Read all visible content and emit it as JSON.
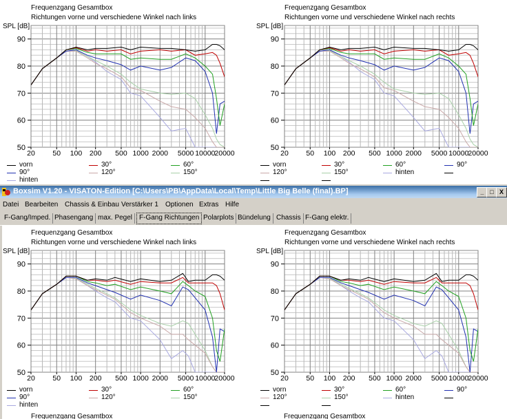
{
  "window": {
    "title": "Boxsim V1.20 - VISATON-Edition [C:\\Users\\PB\\AppData\\Local\\Temp\\Little Big Belle (final).BP]",
    "minimize": "_",
    "maximize": "□",
    "close": "X"
  },
  "menu": [
    "Datei",
    "Bearbeiten",
    "Chassis & Einbau",
    "Verstärker 1",
    "Optionen",
    "Extras",
    "Hilfe"
  ],
  "tabs": [
    {
      "label": "F-Gang/Imped.",
      "active": false
    },
    {
      "label": "Phasengang",
      "active": false
    },
    {
      "label": "max. Pegel",
      "active": false
    },
    {
      "label": "F-Gang Richtungen",
      "active": true
    },
    {
      "label": "Polarplots",
      "active": false
    },
    {
      "label": "Bündelung",
      "active": false
    },
    {
      "label": "Chassis",
      "active": false
    },
    {
      "label": "F-Gang elektr.",
      "active": false
    }
  ],
  "colors": {
    "vorn": "#000000",
    "30": "#c00000",
    "60": "#20a020",
    "90": "#2030b0",
    "120": "#c8a8a8",
    "150": "#a8d0a8",
    "hinten": "#a8a8e0"
  },
  "lower_partial_titles": [
    "Frequenzgang Gesamtbox",
    "Frequenzgang Gesamtbox"
  ],
  "chart_data": [
    {
      "type": "line",
      "title": "Frequenzgang Gesamtbox",
      "subtitle": "Richtungen vorne und verschiedene Winkel nach links",
      "ylabel": "SPL [dB]",
      "xscale": "log",
      "xlim": [
        20,
        20000
      ],
      "ylim": [
        50,
        95
      ],
      "xticks": [
        "20",
        "50",
        "100",
        "200",
        "500",
        "1000",
        "2000",
        "5000",
        "10000",
        "20000"
      ],
      "yticks": [
        "50",
        "60",
        "70",
        "80",
        "90"
      ],
      "grid": true,
      "legend": [
        "vorn",
        "30°",
        "60°",
        "90°",
        "120°",
        "150°",
        "hinten"
      ],
      "x": [
        20,
        30,
        50,
        70,
        100,
        150,
        200,
        300,
        500,
        700,
        1000,
        2000,
        3000,
        5000,
        7000,
        10000,
        13000,
        15000,
        17000,
        20000
      ],
      "series": [
        {
          "name": "vorn",
          "key": "vorn",
          "values": [
            73,
            79,
            83,
            86,
            87,
            86,
            86.5,
            86.5,
            87,
            86,
            87,
            86.5,
            86.5,
            86,
            85.5,
            86,
            88,
            88,
            87.5,
            86
          ]
        },
        {
          "name": "30°",
          "key": "30",
          "values": [
            73,
            79,
            83,
            86,
            86.8,
            85.5,
            86,
            85.5,
            86,
            84.5,
            85.5,
            86,
            85.5,
            86,
            84,
            84.5,
            85,
            84,
            81,
            76
          ]
        },
        {
          "name": "60°",
          "key": "60",
          "values": [
            73,
            79,
            83,
            86,
            86.5,
            85,
            84.5,
            84.5,
            84.5,
            82.5,
            83,
            82.5,
            82.5,
            84.5,
            83,
            80,
            77,
            68,
            58,
            66
          ]
        },
        {
          "name": "90°",
          "key": "90",
          "values": [
            73,
            79,
            83,
            85.5,
            86,
            84,
            83,
            82,
            80.5,
            78.5,
            80,
            78.5,
            79.5,
            83,
            82,
            78,
            70,
            55,
            66,
            67
          ]
        },
        {
          "name": "120°",
          "key": "120",
          "values": [
            73,
            79,
            83,
            85.5,
            85.5,
            83,
            81,
            79,
            76,
            72,
            71,
            67,
            65,
            64,
            61,
            57,
            52,
            50,
            50,
            50
          ]
        },
        {
          "name": "150°",
          "key": "150",
          "values": [
            73,
            79,
            83,
            85.5,
            85.8,
            83.5,
            82,
            80,
            77,
            74,
            71.5,
            70,
            69.5,
            70,
            68,
            62,
            57,
            53,
            51,
            50
          ]
        },
        {
          "name": "hinten",
          "key": "hinten",
          "values": [
            73,
            79,
            83,
            85.5,
            85.8,
            83.5,
            81.5,
            78,
            75,
            70,
            69,
            61,
            56,
            57,
            50,
            50,
            50,
            50,
            50,
            50
          ]
        }
      ]
    },
    {
      "type": "line",
      "title": "Frequenzgang Gesamtbox",
      "subtitle": "Richtungen vorne und verschiedene Winkel nach rechts",
      "ylabel": "SPL [dB]",
      "xscale": "log",
      "xlim": [
        20,
        20000
      ],
      "ylim": [
        50,
        95
      ],
      "xticks": [
        "20",
        "50",
        "100",
        "200",
        "500",
        "1000",
        "2000",
        "5000",
        "10000",
        "20000"
      ],
      "yticks": [
        "50",
        "60",
        "70",
        "80",
        "90"
      ],
      "grid": true,
      "legend": [
        "vorn",
        "30°",
        "60°",
        "90°",
        "120°",
        "150°",
        "hinten",
        "",
        "",
        ""
      ],
      "x": [
        20,
        30,
        50,
        70,
        100,
        150,
        200,
        300,
        500,
        700,
        1000,
        2000,
        3000,
        5000,
        7000,
        10000,
        13000,
        15000,
        17000,
        20000
      ],
      "series": [
        {
          "name": "vorn",
          "key": "vorn",
          "values": [
            73,
            79,
            83,
            86,
            87,
            86,
            86.5,
            86.5,
            87,
            86,
            87,
            86.5,
            86.5,
            86,
            85.5,
            86,
            88,
            88,
            87.5,
            86
          ]
        },
        {
          "name": "30°",
          "key": "30",
          "values": [
            73,
            79,
            83,
            86,
            86.8,
            85.5,
            86,
            85.5,
            86,
            84.5,
            85.5,
            86,
            85.5,
            86,
            84,
            84.5,
            85,
            84,
            81,
            76
          ]
        },
        {
          "name": "60°",
          "key": "60",
          "values": [
            73,
            79,
            83,
            86,
            86.5,
            85,
            84.5,
            84.5,
            84.5,
            82.5,
            83,
            82.5,
            82.5,
            84.5,
            83,
            80,
            77,
            68,
            58,
            66
          ]
        },
        {
          "name": "90°",
          "key": "90",
          "values": [
            73,
            79,
            83,
            85.5,
            86,
            84,
            83,
            82,
            80.5,
            78.5,
            80,
            78.5,
            79.5,
            83,
            82,
            78,
            70,
            55,
            66,
            67
          ]
        },
        {
          "name": "120°",
          "key": "120",
          "values": [
            73,
            79,
            83,
            85.5,
            85.5,
            83,
            81,
            79,
            76,
            72,
            71,
            67,
            65,
            64,
            61,
            57,
            52,
            50,
            50,
            50
          ]
        },
        {
          "name": "150°",
          "key": "150",
          "values": [
            73,
            79,
            83,
            85.5,
            85.8,
            83.5,
            82,
            80,
            77,
            74,
            71.5,
            70,
            69.5,
            70,
            68,
            62,
            57,
            53,
            51,
            50
          ]
        },
        {
          "name": "hinten",
          "key": "hinten",
          "values": [
            73,
            79,
            83,
            85.5,
            85.8,
            83.5,
            81.5,
            78,
            75,
            70,
            69,
            61,
            56,
            57,
            50,
            50,
            50,
            50,
            50,
            50
          ]
        }
      ]
    },
    {
      "type": "line",
      "title": "Frequenzgang Gesamtbox",
      "subtitle": "Richtungen vorne und verschiedene Winkel nach links",
      "ylabel": "SPL [dB]",
      "xscale": "log",
      "xlim": [
        20,
        20000
      ],
      "ylim": [
        50,
        95
      ],
      "xticks": [
        "20",
        "50",
        "100",
        "200",
        "500",
        "1000",
        "2000",
        "5000",
        "10000",
        "20000"
      ],
      "yticks": [
        "50",
        "60",
        "70",
        "80",
        "90"
      ],
      "grid": true,
      "legend": [
        "vorn",
        "30°",
        "60°",
        "90°",
        "120°",
        "150°",
        "hinten"
      ],
      "x": [
        20,
        30,
        50,
        70,
        100,
        150,
        200,
        300,
        400,
        700,
        1000,
        2000,
        3000,
        4500,
        5500,
        7000,
        10000,
        13000,
        15000,
        17000,
        20000
      ],
      "series": [
        {
          "name": "vorn",
          "key": "vorn",
          "values": [
            73,
            79,
            82.5,
            85.5,
            85.5,
            84,
            84.5,
            84,
            85,
            83.5,
            84.5,
            83.5,
            84,
            86.5,
            83.5,
            84,
            84,
            86,
            86,
            85.5,
            84
          ]
        },
        {
          "name": "30°",
          "key": "30",
          "values": [
            73,
            79,
            82.5,
            85.5,
            85.5,
            84,
            84,
            83.5,
            84,
            82.5,
            83.5,
            83,
            83,
            85,
            83,
            83,
            83,
            83,
            82,
            79,
            73
          ]
        },
        {
          "name": "60°",
          "key": "60",
          "values": [
            73,
            79,
            82.5,
            85.5,
            85.5,
            83.5,
            83,
            82,
            82.5,
            80.5,
            81.5,
            80,
            79,
            83.5,
            82,
            80,
            78,
            70,
            58,
            54,
            66
          ]
        },
        {
          "name": "90°",
          "key": "90",
          "values": [
            73,
            79,
            82.5,
            85,
            85,
            83,
            82,
            80.5,
            79.5,
            77,
            78.5,
            76.5,
            74.5,
            81.5,
            80.5,
            77.5,
            73,
            63,
            50,
            66,
            65
          ]
        },
        {
          "name": "120°",
          "key": "120",
          "values": [
            73,
            79,
            82.5,
            85,
            84.5,
            82,
            80.5,
            78.5,
            77,
            72,
            70,
            67,
            64,
            64,
            62,
            60,
            57,
            52,
            50,
            50,
            50
          ]
        },
        {
          "name": "150°",
          "key": "150",
          "values": [
            73,
            79,
            82.5,
            85,
            84.8,
            82.5,
            81,
            79,
            77.5,
            73,
            71,
            68,
            67,
            69,
            68,
            64,
            58,
            52,
            50,
            50,
            50
          ]
        },
        {
          "name": "hinten",
          "key": "hinten",
          "values": [
            73,
            79,
            82.5,
            85,
            84.8,
            82,
            80,
            77.5,
            76,
            70,
            69,
            62,
            55,
            58,
            56,
            50,
            50,
            50,
            50,
            50,
            50
          ]
        }
      ]
    },
    {
      "type": "line",
      "title": "Frequenzgang Gesamtbox",
      "subtitle": "Richtungen vorne und verschiedene Winkel nach rechts",
      "ylabel": "SPL [dB]",
      "xscale": "log",
      "xlim": [
        20,
        20000
      ],
      "ylim": [
        50,
        95
      ],
      "xticks": [
        "20",
        "50",
        "100",
        "200",
        "500",
        "1000",
        "2000",
        "5000",
        "10000",
        "20000"
      ],
      "yticks": [
        "50",
        "60",
        "70",
        "80",
        "90"
      ],
      "grid": true,
      "legend": [
        "vorn",
        "30°",
        "60°",
        "90°",
        "120°",
        "150°",
        "hinten",
        "",
        "",
        ""
      ],
      "x": [
        20,
        30,
        50,
        70,
        100,
        150,
        200,
        300,
        400,
        700,
        1000,
        2000,
        3000,
        4500,
        5500,
        7000,
        10000,
        13000,
        15000,
        17000,
        20000
      ],
      "series": [
        {
          "name": "vorn",
          "key": "vorn",
          "values": [
            73,
            79,
            82.5,
            85.5,
            85.5,
            84,
            84.5,
            84,
            85,
            83.5,
            84.5,
            83.5,
            84,
            86.5,
            83.5,
            84,
            84,
            86,
            86,
            85.5,
            84
          ]
        },
        {
          "name": "30°",
          "key": "30",
          "values": [
            73,
            79,
            82.5,
            85.5,
            85.5,
            84,
            84,
            83.5,
            84,
            82.5,
            83.5,
            83,
            83,
            85,
            83,
            83,
            83,
            83,
            82,
            79,
            73
          ]
        },
        {
          "name": "60°",
          "key": "60",
          "values": [
            73,
            79,
            82.5,
            85.5,
            85.5,
            83.5,
            83,
            82,
            82.5,
            80.5,
            81.5,
            80,
            79,
            83.5,
            82,
            80,
            78,
            70,
            58,
            54,
            66
          ]
        },
        {
          "name": "90°",
          "key": "90",
          "values": [
            73,
            79,
            82.5,
            85,
            85,
            83,
            82,
            80.5,
            79.5,
            77,
            78.5,
            76.5,
            74.5,
            81.5,
            80.5,
            77.5,
            73,
            63,
            50,
            66,
            65
          ]
        },
        {
          "name": "120°",
          "key": "120",
          "values": [
            73,
            79,
            82.5,
            85,
            84.5,
            82,
            80.5,
            78.5,
            77,
            72,
            70,
            67,
            64,
            64,
            62,
            60,
            57,
            52,
            50,
            50,
            50
          ]
        },
        {
          "name": "150°",
          "key": "150",
          "values": [
            73,
            79,
            82.5,
            85,
            84.8,
            82.5,
            81,
            79,
            77.5,
            73,
            71,
            68,
            67,
            69,
            68,
            64,
            58,
            52,
            50,
            50,
            50
          ]
        },
        {
          "name": "hinten",
          "key": "hinten",
          "values": [
            73,
            79,
            82.5,
            85,
            84.8,
            82,
            80,
            77.5,
            76,
            70,
            69,
            62,
            55,
            58,
            56,
            50,
            50,
            50,
            50,
            50,
            50
          ]
        }
      ]
    }
  ]
}
